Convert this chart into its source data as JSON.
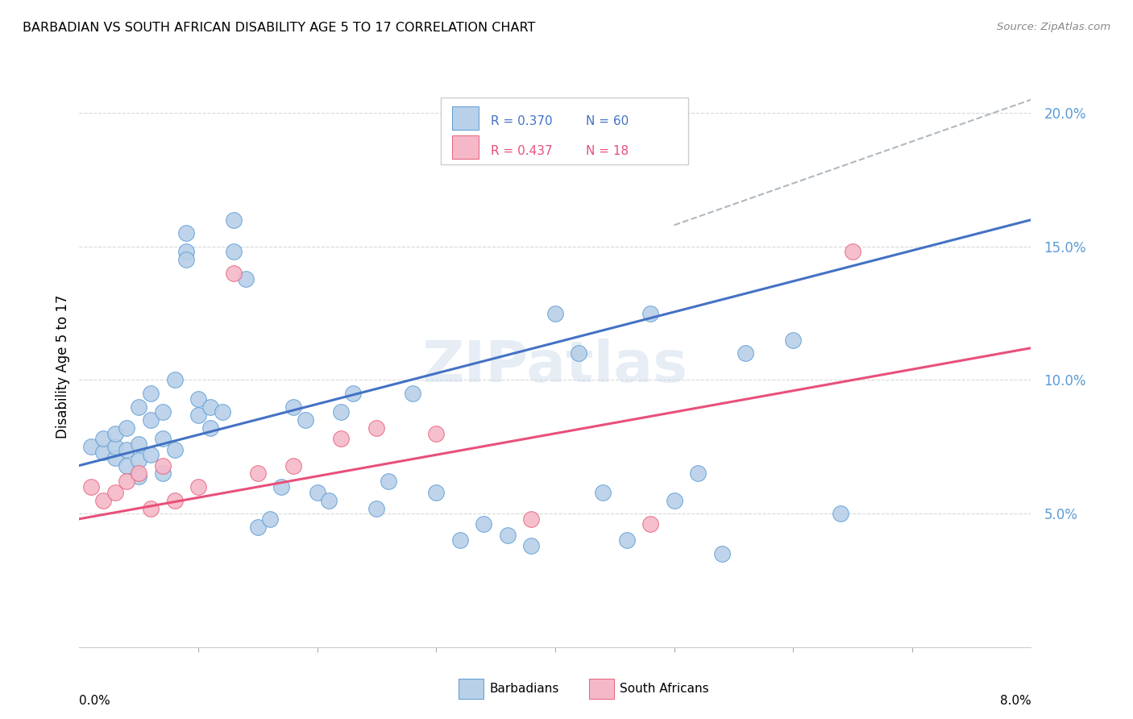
{
  "title": "BARBADIAN VS SOUTH AFRICAN DISABILITY AGE 5 TO 17 CORRELATION CHART",
  "source": "Source: ZipAtlas.com",
  "ylabel": "Disability Age 5 to 17",
  "xlim": [
    0.0,
    0.08
  ],
  "ylim": [
    0.0,
    0.21
  ],
  "yticks": [
    0.05,
    0.1,
    0.15,
    0.2
  ],
  "ytick_labels": [
    "5.0%",
    "10.0%",
    "15.0%",
    "20.0%"
  ],
  "blue_color": "#b8d0e8",
  "pink_color": "#f5b8c8",
  "blue_edge_color": "#5b9bd5",
  "pink_edge_color": "#e8607a",
  "blue_line_color": "#4472c4",
  "pink_line_color": "#e8507a",
  "dash_line_color": "#b0b8c0",
  "barbadians_label": "Barbadians",
  "south_africans_label": "South Africans",
  "blue_trend_x": [
    0.0,
    0.08
  ],
  "blue_trend_y": [
    0.068,
    0.16
  ],
  "pink_trend_x": [
    0.0,
    0.08
  ],
  "pink_trend_y": [
    0.048,
    0.112
  ],
  "dash_trend_x": [
    0.05,
    0.08
  ],
  "dash_trend_y": [
    0.158,
    0.205
  ],
  "background_color": "#ffffff",
  "grid_color": "#d8d8d8",
  "barbadians_x": [
    0.001,
    0.002,
    0.002,
    0.003,
    0.003,
    0.003,
    0.004,
    0.004,
    0.004,
    0.005,
    0.005,
    0.005,
    0.005,
    0.006,
    0.006,
    0.006,
    0.007,
    0.007,
    0.007,
    0.008,
    0.008,
    0.009,
    0.009,
    0.009,
    0.01,
    0.01,
    0.011,
    0.011,
    0.012,
    0.013,
    0.013,
    0.014,
    0.015,
    0.016,
    0.017,
    0.018,
    0.019,
    0.02,
    0.021,
    0.022,
    0.023,
    0.025,
    0.026,
    0.028,
    0.03,
    0.032,
    0.034,
    0.036,
    0.038,
    0.04,
    0.042,
    0.044,
    0.046,
    0.048,
    0.05,
    0.052,
    0.054,
    0.056,
    0.06,
    0.064
  ],
  "barbadians_y": [
    0.075,
    0.073,
    0.078,
    0.071,
    0.075,
    0.08,
    0.068,
    0.074,
    0.082,
    0.07,
    0.076,
    0.064,
    0.09,
    0.085,
    0.072,
    0.095,
    0.078,
    0.065,
    0.088,
    0.074,
    0.1,
    0.148,
    0.155,
    0.145,
    0.087,
    0.093,
    0.082,
    0.09,
    0.088,
    0.148,
    0.16,
    0.138,
    0.045,
    0.048,
    0.06,
    0.09,
    0.085,
    0.058,
    0.055,
    0.088,
    0.095,
    0.052,
    0.062,
    0.095,
    0.058,
    0.04,
    0.046,
    0.042,
    0.038,
    0.125,
    0.11,
    0.058,
    0.04,
    0.125,
    0.055,
    0.065,
    0.035,
    0.11,
    0.115,
    0.05
  ],
  "south_africans_x": [
    0.001,
    0.002,
    0.003,
    0.004,
    0.005,
    0.006,
    0.007,
    0.008,
    0.01,
    0.013,
    0.015,
    0.018,
    0.022,
    0.025,
    0.03,
    0.038,
    0.048,
    0.065
  ],
  "south_africans_y": [
    0.06,
    0.055,
    0.058,
    0.062,
    0.065,
    0.052,
    0.068,
    0.055,
    0.06,
    0.14,
    0.065,
    0.068,
    0.078,
    0.082,
    0.08,
    0.048,
    0.046,
    0.148
  ]
}
